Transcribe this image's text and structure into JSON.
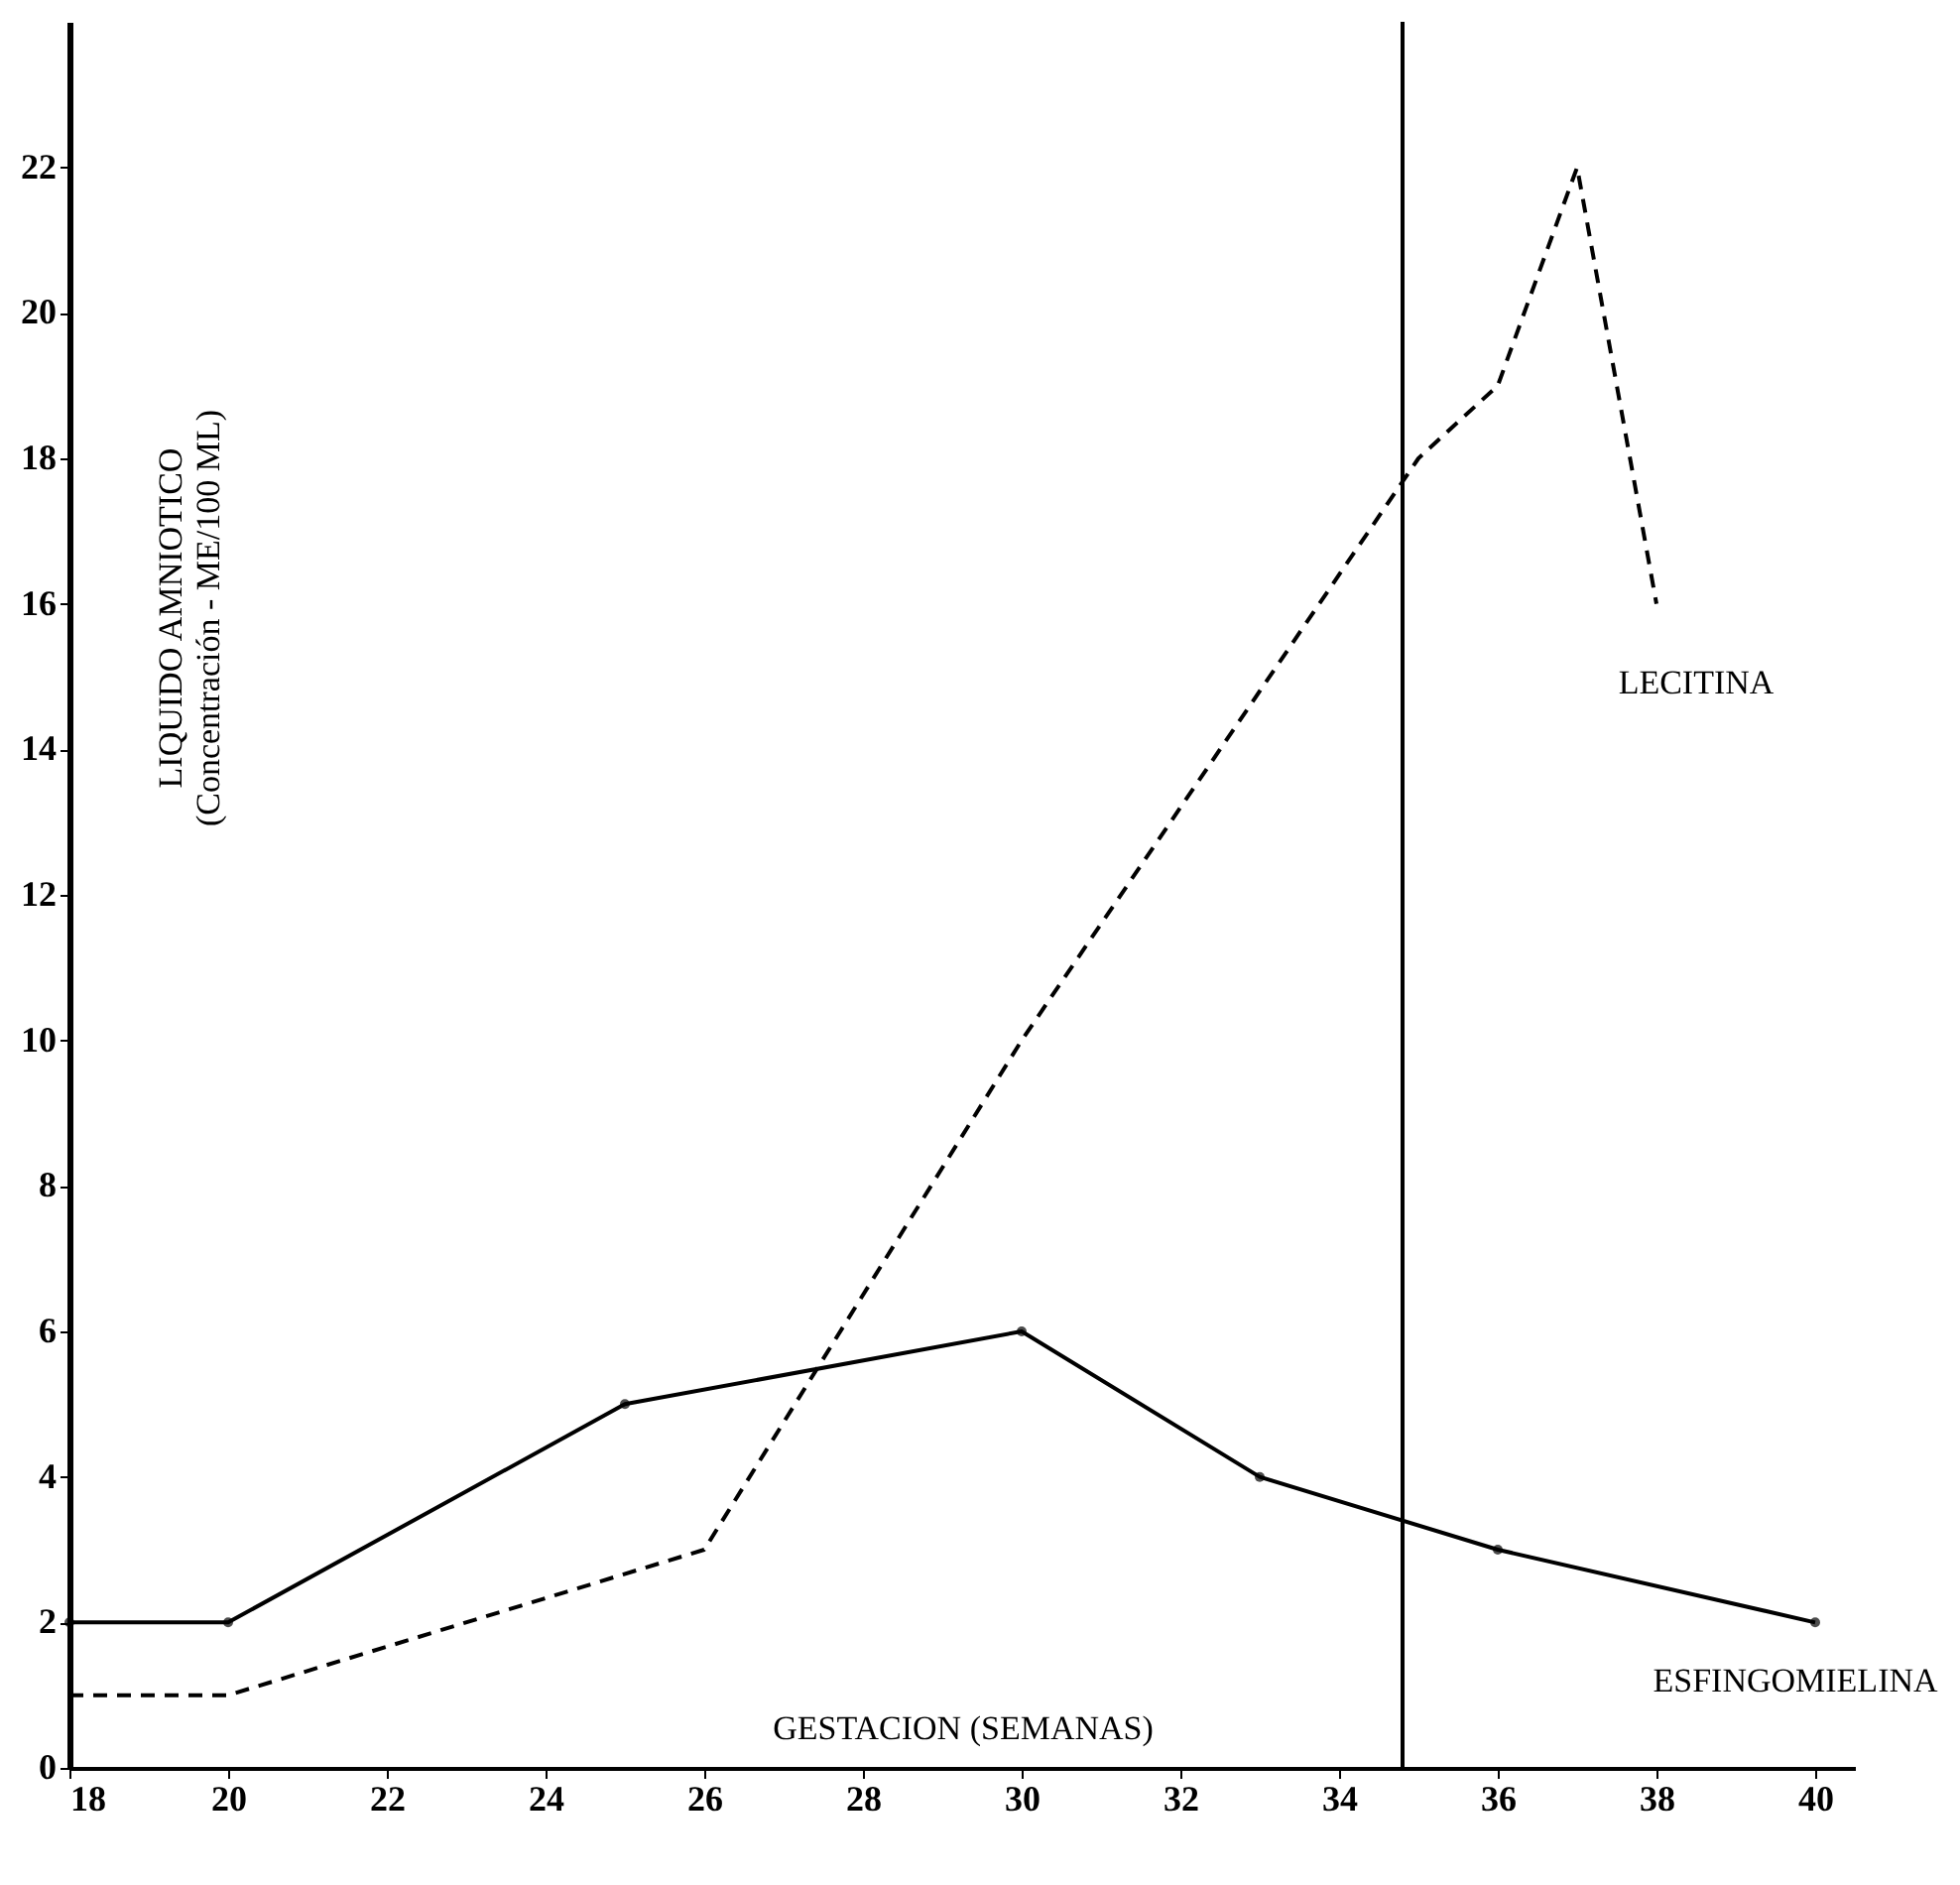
{
  "chart_data": {
    "type": "line",
    "xlabel": "GESTACION (SEMANAS)",
    "ylabel": "LIQUIDO AMNIOTICO\n(Concentración - ME/100 ML)",
    "xlim": [
      18,
      40.5
    ],
    "xticks": [
      18,
      20,
      22,
      24,
      26,
      28,
      30,
      32,
      34,
      36,
      38,
      40
    ],
    "ylim": [
      0,
      24
    ],
    "yticks": [
      0,
      2,
      4,
      6,
      8,
      10,
      12,
      14,
      16,
      18,
      20,
      22
    ],
    "grid": false,
    "series": [
      {
        "name": "LECITINA",
        "color": "#000000",
        "line_style": "dashed",
        "marker": "none",
        "x": [
          18,
          20,
          26,
          30,
          35,
          36,
          37,
          38
        ],
        "values": [
          1,
          1,
          3,
          10,
          18,
          19,
          22,
          16
        ]
      },
      {
        "name": "ESFINGOMIELINA",
        "color": "#000000",
        "line_style": "solid",
        "marker": "circle",
        "x": [
          18,
          20,
          25,
          30,
          33,
          36,
          40
        ],
        "values": [
          2,
          2,
          5,
          6,
          4,
          3,
          2
        ]
      }
    ],
    "ref_lines": [
      {
        "axis": "x",
        "value": 34.8,
        "color": "#000000"
      }
    ]
  }
}
